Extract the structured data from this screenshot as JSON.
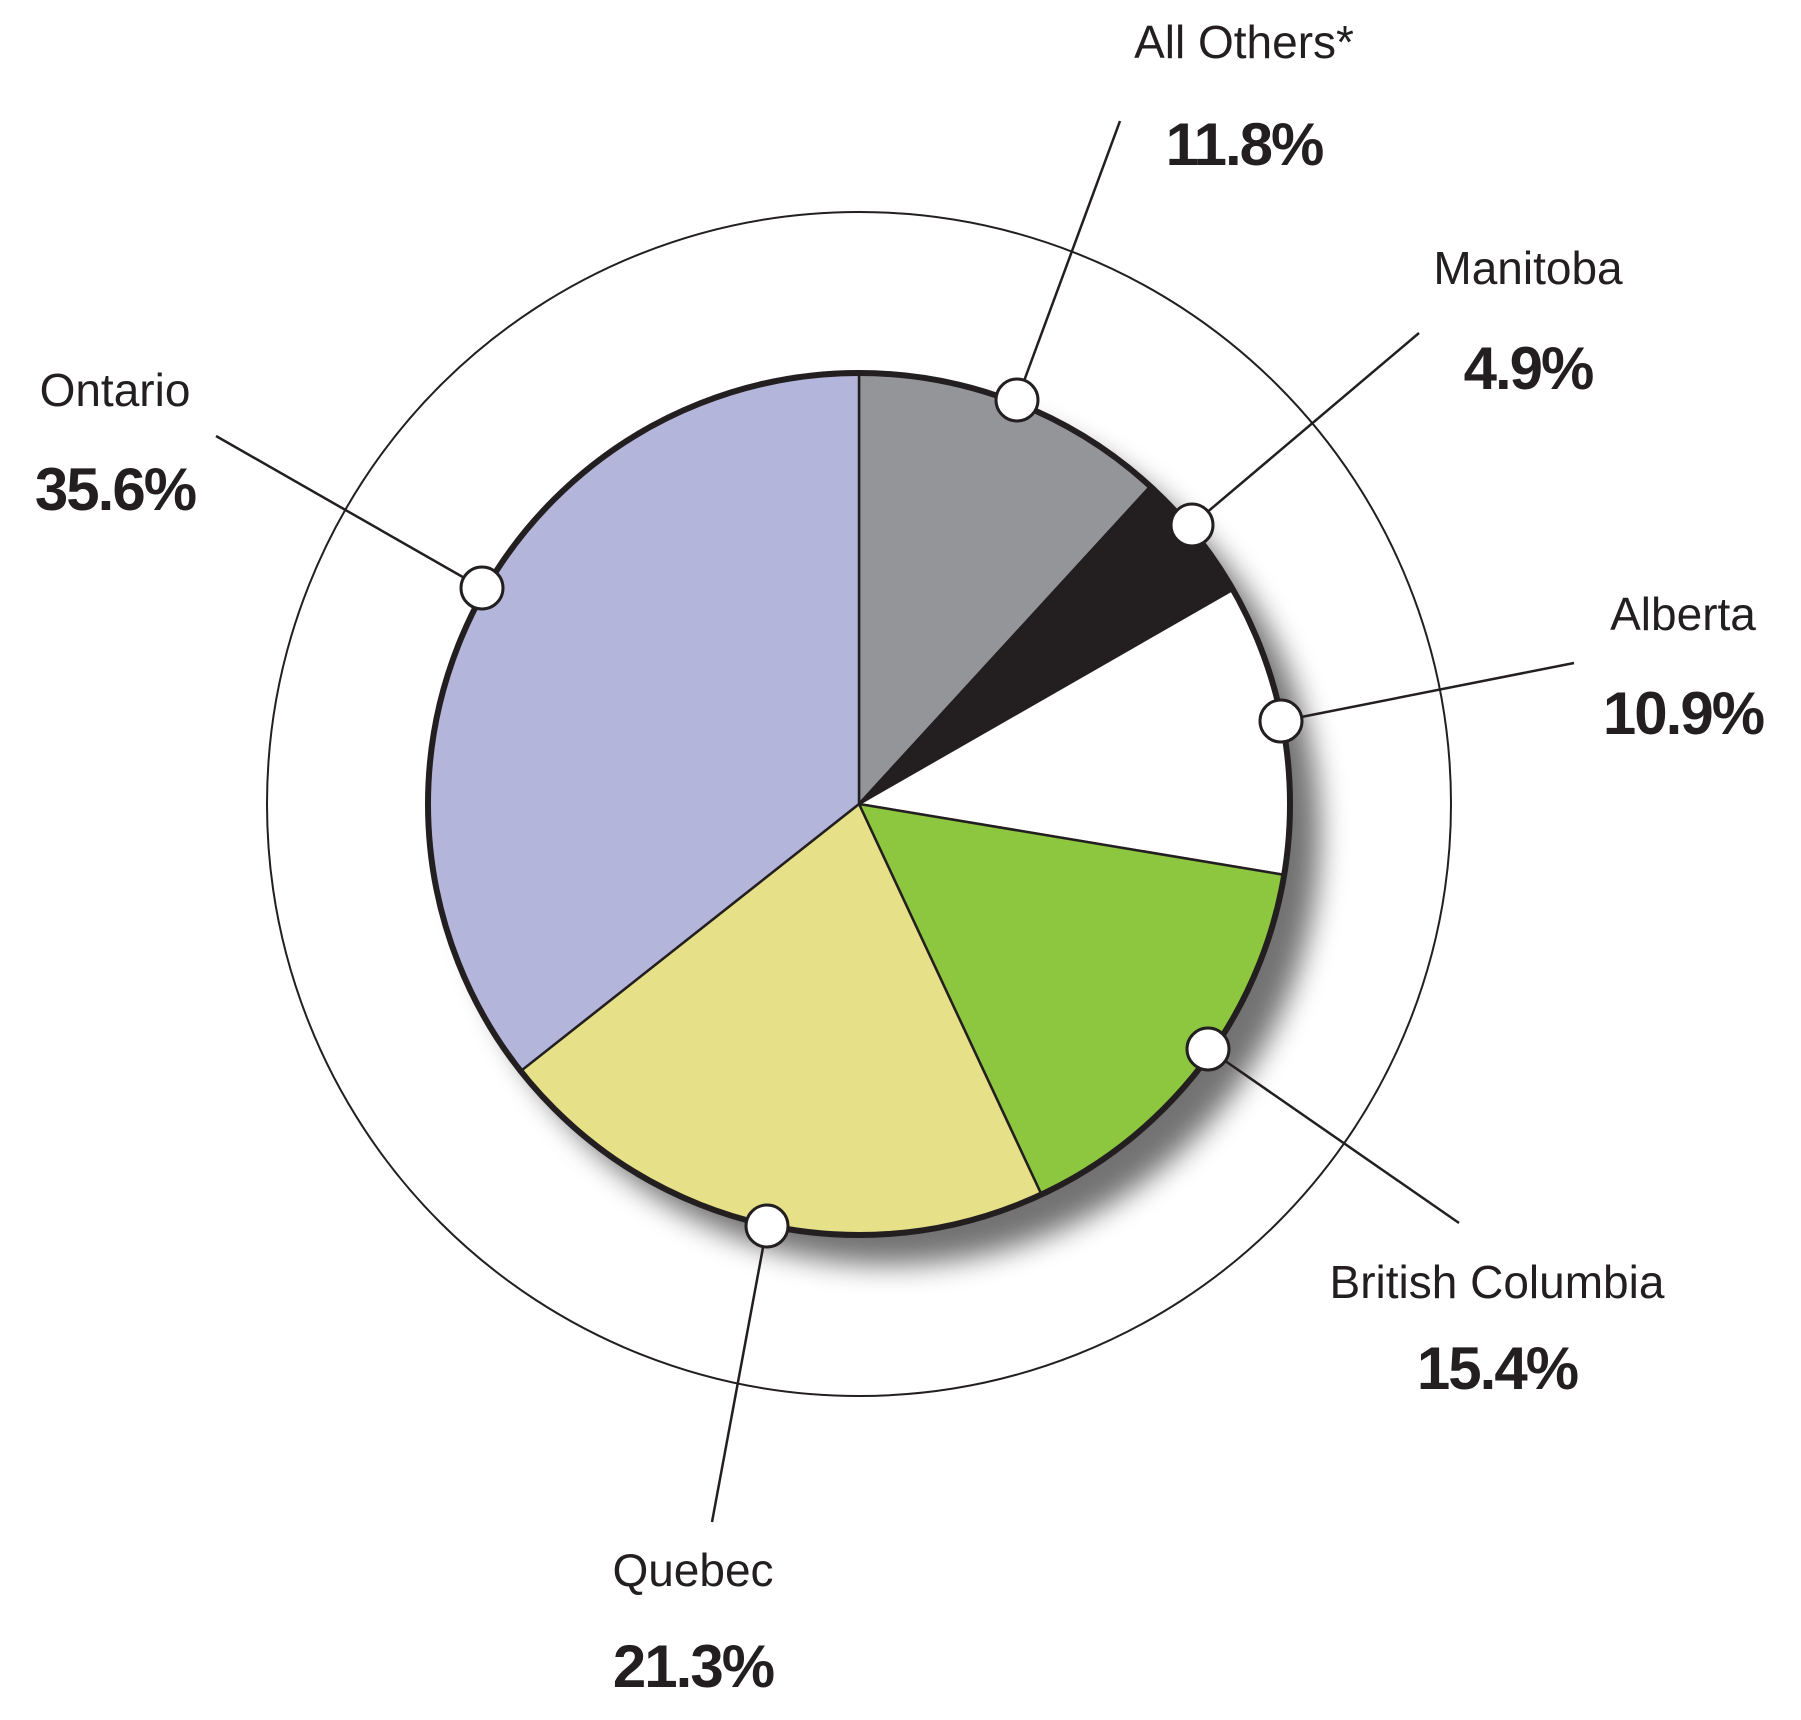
{
  "chart_data": {
    "type": "pie",
    "categories": [
      "All Others*",
      "Manitoba",
      "Alberta",
      "British Columbia",
      "Quebec",
      "Ontario"
    ],
    "values": [
      11.8,
      4.9,
      10.9,
      15.4,
      21.3,
      35.6
    ],
    "value_labels": [
      "11.8%",
      "4.9%",
      "10.9%",
      "15.4%",
      "21.3%",
      "35.6%"
    ],
    "colors": [
      "#939598",
      "#231f20",
      "#ffffff",
      "#8dc63f",
      "#e6e088",
      "#b3b5db"
    ]
  }
}
